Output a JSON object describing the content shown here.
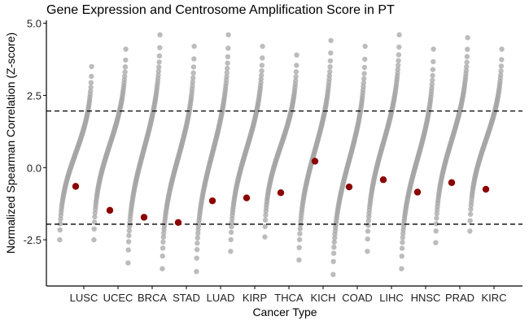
{
  "chart_data": {
    "type": "scatter",
    "title": "Gene Expression and Centrosome Amplification Score in PT",
    "xlabel": "Cancer Type",
    "ylabel": "Normalized Spearman Correlation (Z-score)",
    "categories": [
      "LUSC",
      "UCEC",
      "BRCA",
      "STAD",
      "LUAD",
      "KIRP",
      "THCA",
      "KICH",
      "COAD",
      "LIHC",
      "HNSC",
      "PRAD",
      "KIRC"
    ],
    "ylim": [
      -4.1,
      5.1
    ],
    "yticks": [
      -2.5,
      0.0,
      2.5,
      5.0
    ],
    "ytick_labels": [
      "-2.5",
      "0.0",
      "2.5",
      "5.0"
    ],
    "reference_lines": [
      1.96,
      -1.96
    ],
    "grid": false,
    "background_points": {
      "color": "#a6a6a6",
      "description_ranges": [
        {
          "category": "LUSC",
          "min": -2.5,
          "max": 3.5
        },
        {
          "category": "UCEC",
          "min": -2.5,
          "max": 4.1
        },
        {
          "category": "BRCA",
          "min": -3.3,
          "max": 4.6
        },
        {
          "category": "STAD",
          "min": -3.5,
          "max": 4.2
        },
        {
          "category": "LUAD",
          "min": -3.6,
          "max": 4.6
        },
        {
          "category": "KIRP",
          "min": -2.9,
          "max": 4.2
        },
        {
          "category": "THCA",
          "min": -2.4,
          "max": 3.9
        },
        {
          "category": "KICH",
          "min": -3.2,
          "max": 4.4
        },
        {
          "category": "COAD",
          "min": -3.7,
          "max": 4.2
        },
        {
          "category": "LIHC",
          "min": -2.9,
          "max": 4.6
        },
        {
          "category": "HNSC",
          "min": -3.5,
          "max": 4.1
        },
        {
          "category": "PRAD",
          "min": -2.6,
          "max": 4.5
        },
        {
          "category": "KIRC",
          "min": -2.2,
          "max": 4.1
        }
      ]
    },
    "highlight_points": {
      "color": "#8b0000",
      "values": [
        {
          "category": "LUSC",
          "y": -0.65
        },
        {
          "category": "UCEC",
          "y": -1.48
        },
        {
          "category": "BRCA",
          "y": -1.72
        },
        {
          "category": "STAD",
          "y": -1.9
        },
        {
          "category": "LUAD",
          "y": -1.15
        },
        {
          "category": "KIRP",
          "y": -1.05
        },
        {
          "category": "THCA",
          "y": -0.87
        },
        {
          "category": "KICH",
          "y": 0.22
        },
        {
          "category": "COAD",
          "y": -0.67
        },
        {
          "category": "LIHC",
          "y": -0.42
        },
        {
          "category": "HNSC",
          "y": -0.85
        },
        {
          "category": "PRAD",
          "y": -0.52
        },
        {
          "category": "KIRC",
          "y": -0.75
        }
      ]
    }
  }
}
